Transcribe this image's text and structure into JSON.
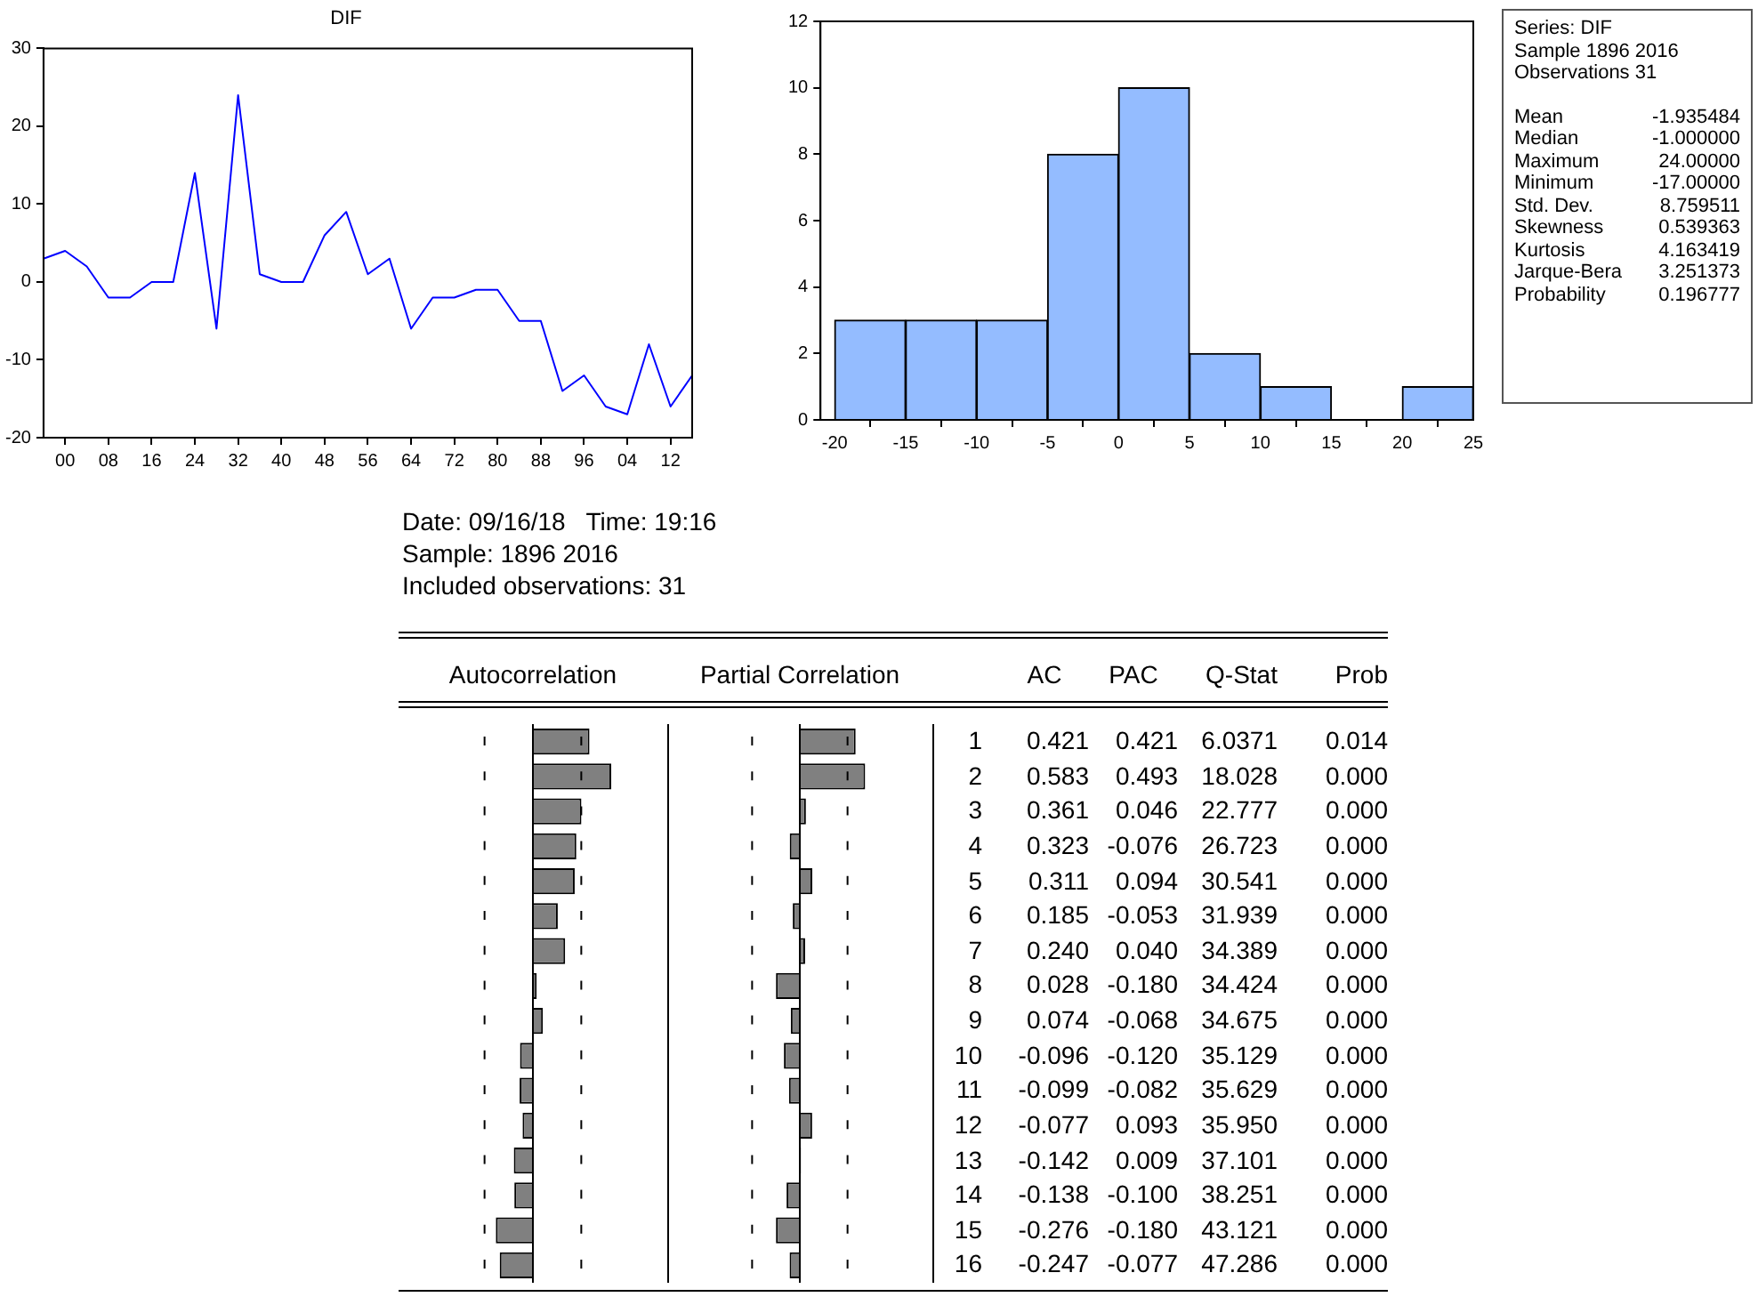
{
  "chart_data": [
    {
      "type": "line",
      "title": "DIF",
      "x": [
        1896,
        1900,
        1904,
        1908,
        1912,
        1916,
        1920,
        1924,
        1928,
        1932,
        1936,
        1940,
        1944,
        1948,
        1952,
        1956,
        1960,
        1964,
        1968,
        1972,
        1976,
        1980,
        1984,
        1988,
        1992,
        1996,
        2000,
        2004,
        2008,
        2012,
        2016
      ],
      "series": [
        {
          "color": "#0000ff",
          "values": [
            3,
            4,
            2,
            -2,
            -2,
            0,
            0,
            14,
            -6,
            24,
            1,
            0,
            0,
            6,
            9,
            1,
            3,
            -6,
            -2,
            -2,
            -1,
            -1,
            -5,
            -5,
            -14,
            -12,
            -16,
            -17,
            -8,
            -16,
            -12
          ]
        }
      ],
      "xlim": [
        1896,
        2016
      ],
      "xticks": [
        {
          "value": 1900,
          "label": "00"
        },
        {
          "value": 1908,
          "label": "08"
        },
        {
          "value": 1916,
          "label": "16"
        },
        {
          "value": 1924,
          "label": "24"
        },
        {
          "value": 1932,
          "label": "32"
        },
        {
          "value": 1940,
          "label": "40"
        },
        {
          "value": 1948,
          "label": "48"
        },
        {
          "value": 1956,
          "label": "56"
        },
        {
          "value": 1964,
          "label": "64"
        },
        {
          "value": 1972,
          "label": "72"
        },
        {
          "value": 1980,
          "label": "80"
        },
        {
          "value": 1988,
          "label": "88"
        },
        {
          "value": 1996,
          "label": "96"
        },
        {
          "value": 2004,
          "label": "04"
        },
        {
          "value": 2012,
          "label": "12"
        }
      ],
      "ylim": [
        -20,
        30
      ],
      "yticks": [
        -20,
        -10,
        0,
        10,
        20,
        30
      ]
    },
    {
      "type": "histogram",
      "bins": [
        -20,
        -15,
        -10,
        -5,
        0,
        5,
        10,
        15,
        20,
        25
      ],
      "values": [
        3,
        3,
        3,
        8,
        10,
        2,
        1,
        0,
        1
      ],
      "color": "#94bcff",
      "xlim": [
        -21,
        25
      ],
      "xticks": [
        -20,
        -15,
        -10,
        -5,
        0,
        5,
        10,
        15,
        20,
        25
      ],
      "ylim": [
        0,
        12
      ],
      "yticks": [
        0,
        2,
        4,
        6,
        8,
        10,
        12
      ]
    },
    {
      "type": "other",
      "title": "Series: DIF",
      "subtitle": "Sample 1896 2016",
      "annotations": [
        "Observations 31"
      ],
      "categories": [
        "Mean",
        "Median",
        "Maximum",
        "Minimum",
        "Std. Dev.",
        "Skewness",
        "Kurtosis",
        "Jarque-Bera",
        "Probability"
      ],
      "values": [
        -1.935484,
        -1,
        24,
        -17,
        8.759511,
        0.539363,
        4.163419,
        3.251373,
        0.196777
      ],
      "value_labels": [
        "-1.935484",
        "-1.000000",
        "24.00000",
        "-17.00000",
        "8.759511",
        "0.539363",
        "4.163419",
        "3.251373",
        "0.196777"
      ]
    },
    {
      "type": "bar",
      "orientation": "horizontal",
      "title": "Autocorrelation",
      "annotations": [
        "Date: 09/16/18   Time: 19:16",
        "Sample: 1896 2016",
        "Included observations: 31"
      ],
      "categories": [
        "1",
        "2",
        "3",
        "4",
        "5",
        "6",
        "7",
        "8",
        "9",
        "10",
        "11",
        "12",
        "13",
        "14",
        "15",
        "16"
      ],
      "series": [
        {
          "name": "AC",
          "color": "#808080",
          "values": [
            0.421,
            0.583,
            0.361,
            0.323,
            0.311,
            0.185,
            0.24,
            0.028,
            0.074,
            -0.096,
            -0.099,
            -0.077,
            -0.142,
            -0.138,
            -0.276,
            -0.247
          ],
          "value_labels": [
            "0.421",
            "0.583",
            "0.361",
            "0.323",
            "0.311",
            "0.185",
            "0.240",
            "0.028",
            "0.074",
            "-0.096",
            "-0.099",
            "-0.077",
            "-0.142",
            "-0.138",
            "-0.276",
            "-0.247"
          ]
        }
      ],
      "xlim": [
        -1,
        1
      ],
      "tick_labels": "y",
      "ref_lines": [
        {
          "axis": "x",
          "value": -0.36,
          "line_style": "dashed"
        },
        {
          "axis": "x",
          "value": 0.36,
          "line_style": "dashed"
        }
      ]
    },
    {
      "type": "bar",
      "orientation": "horizontal",
      "title": "Partial Correlation",
      "categories": [
        null,
        null,
        null,
        null,
        null,
        null,
        null,
        null,
        null,
        null,
        null,
        null,
        null,
        null,
        null,
        null
      ],
      "series": [
        {
          "name": "PAC",
          "color": "#808080",
          "values": [
            0.421,
            0.493,
            0.046,
            -0.076,
            0.094,
            -0.053,
            0.04,
            -0.18,
            -0.068,
            -0.12,
            -0.082,
            0.093,
            0.009,
            -0.1,
            -0.18,
            -0.077
          ],
          "value_labels": [
            "0.421",
            "0.493",
            "0.046",
            "-0.076",
            "0.094",
            "-0.053",
            "0.040",
            "-0.180",
            "-0.068",
            "-0.120",
            "-0.082",
            "0.093",
            "0.009",
            "-0.100",
            "-0.180",
            "-0.077"
          ]
        }
      ],
      "xlim": [
        -1,
        1
      ],
      "tick_labels": false,
      "ref_lines": [
        {
          "axis": "x",
          "value": -0.36,
          "line_style": "dashed"
        },
        {
          "axis": "x",
          "value": 0.36,
          "line_style": "dashed"
        }
      ]
    },
    {
      "type": "other",
      "title": "Q-Stat",
      "categories": [
        null,
        null,
        null,
        null,
        null,
        null,
        null,
        null,
        null,
        null,
        null,
        null,
        null,
        null,
        null,
        null
      ],
      "values": [
        6.0371,
        18.028,
        22.777,
        26.723,
        30.541,
        31.939,
        34.389,
        34.424,
        34.675,
        35.129,
        35.629,
        35.95,
        37.101,
        38.251,
        43.121,
        47.286
      ],
      "value_labels": [
        "6.0371",
        "18.028",
        "22.777",
        "26.723",
        "30.541",
        "31.939",
        "34.389",
        "34.424",
        "34.675",
        "35.129",
        "35.629",
        "35.950",
        "37.101",
        "38.251",
        "43.121",
        "47.286"
      ]
    },
    {
      "type": "other",
      "title": "Prob",
      "categories": [
        null,
        null,
        null,
        null,
        null,
        null,
        null,
        null,
        null,
        null,
        null,
        null,
        null,
        null,
        null,
        null
      ],
      "values": [
        0.014,
        0,
        0,
        0,
        0,
        0,
        0,
        0,
        0,
        0,
        0,
        0,
        0,
        0,
        0,
        0
      ],
      "value_labels": [
        "0.014",
        "0.000",
        "0.000",
        "0.000",
        "0.000",
        "0.000",
        "0.000",
        "0.000",
        "0.000",
        "0.000",
        "0.000",
        "0.000",
        "0.000",
        "0.000",
        "0.000",
        "0.000"
      ]
    }
  ]
}
